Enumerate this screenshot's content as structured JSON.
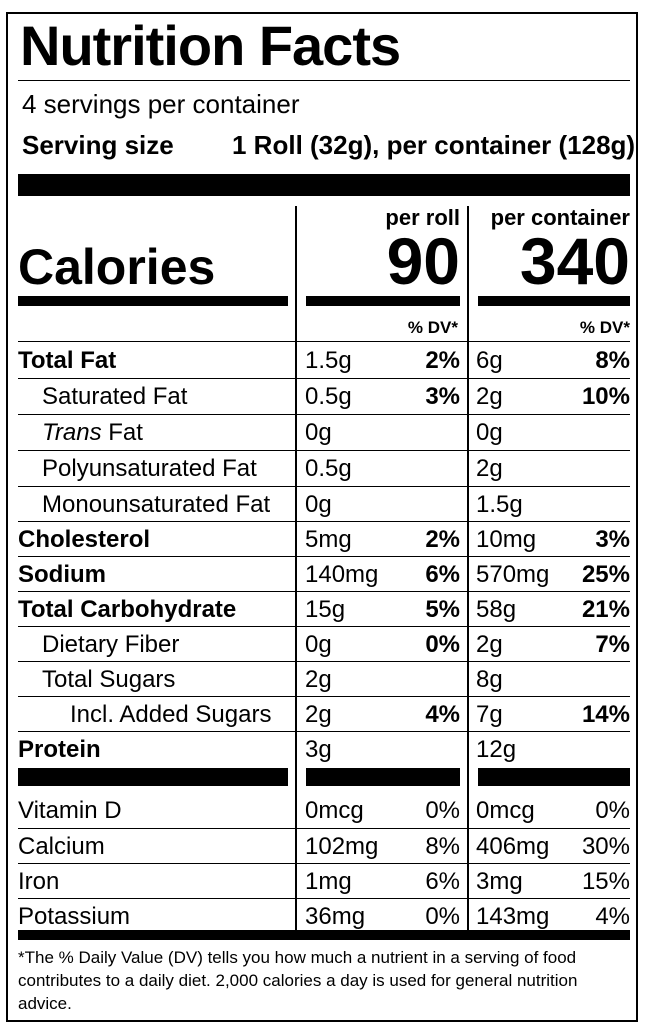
{
  "label": {
    "title": "Nutrition Facts",
    "servings_per_container": "4 servings per container",
    "serving_size_label": "Serving size",
    "serving_size_value": "1 Roll (32g), per container (128g)",
    "col1_header": "per roll",
    "col2_header": "per container",
    "calories_label": "Calories",
    "calories_per_roll": "90",
    "calories_per_container": "340",
    "dv_header": "% DV*",
    "nutrients": [
      {
        "name": "Total Fat",
        "amt1": "1.5g",
        "dv1": "2%",
        "amt2": "6g",
        "dv2": "8%"
      },
      {
        "name": "Saturated Fat",
        "amt1": "0.5g",
        "dv1": "3%",
        "amt2": "2g",
        "dv2": "10%"
      },
      {
        "name_italic": "Trans",
        "name": " Fat",
        "amt1": "0g",
        "dv1": "",
        "amt2": "0g",
        "dv2": ""
      },
      {
        "name": "Polyunsaturated Fat",
        "amt1": "0.5g",
        "dv1": "",
        "amt2": "2g",
        "dv2": ""
      },
      {
        "name": "Monounsaturated Fat",
        "amt1": "0g",
        "dv1": "",
        "amt2": "1.5g",
        "dv2": ""
      },
      {
        "name": "Cholesterol",
        "amt1": "5mg",
        "dv1": "2%",
        "amt2": "10mg",
        "dv2": "3%"
      },
      {
        "name": "Sodium",
        "amt1": "140mg",
        "dv1": "6%",
        "amt2": "570mg",
        "dv2": "25%"
      },
      {
        "name": "Total Carbohydrate",
        "amt1": "15g",
        "dv1": "5%",
        "amt2": "58g",
        "dv2": "21%"
      },
      {
        "name": "Dietary Fiber",
        "amt1": "0g",
        "dv1": "0%",
        "amt2": "2g",
        "dv2": "7%"
      },
      {
        "name": "Total Sugars",
        "amt1": "2g",
        "dv1": "",
        "amt2": "8g",
        "dv2": ""
      },
      {
        "name": "Incl. Added Sugars",
        "amt1": "2g",
        "dv1": "4%",
        "amt2": "7g",
        "dv2": "14%"
      },
      {
        "name": "Protein",
        "amt1": "3g",
        "dv1": "",
        "amt2": "12g",
        "dv2": ""
      }
    ],
    "vitamins": [
      {
        "name": "Vitamin D",
        "amt1": "0mcg",
        "dv1": "0%",
        "amt2": "0mcg",
        "dv2": "0%"
      },
      {
        "name": "Calcium",
        "amt1": "102mg",
        "dv1": "8%",
        "amt2": "406mg",
        "dv2": "30%"
      },
      {
        "name": "Iron",
        "amt1": "1mg",
        "dv1": "6%",
        "amt2": "3mg",
        "dv2": "15%"
      },
      {
        "name": "Potassium",
        "amt1": "36mg",
        "dv1": "0%",
        "amt2": "143mg",
        "dv2": "4%"
      }
    ],
    "footnote": "*The % Daily Value (DV) tells you how much a nutrient in a serving of food contributes to a daily diet. 2,000 calories a day is used for general nutrition advice."
  }
}
